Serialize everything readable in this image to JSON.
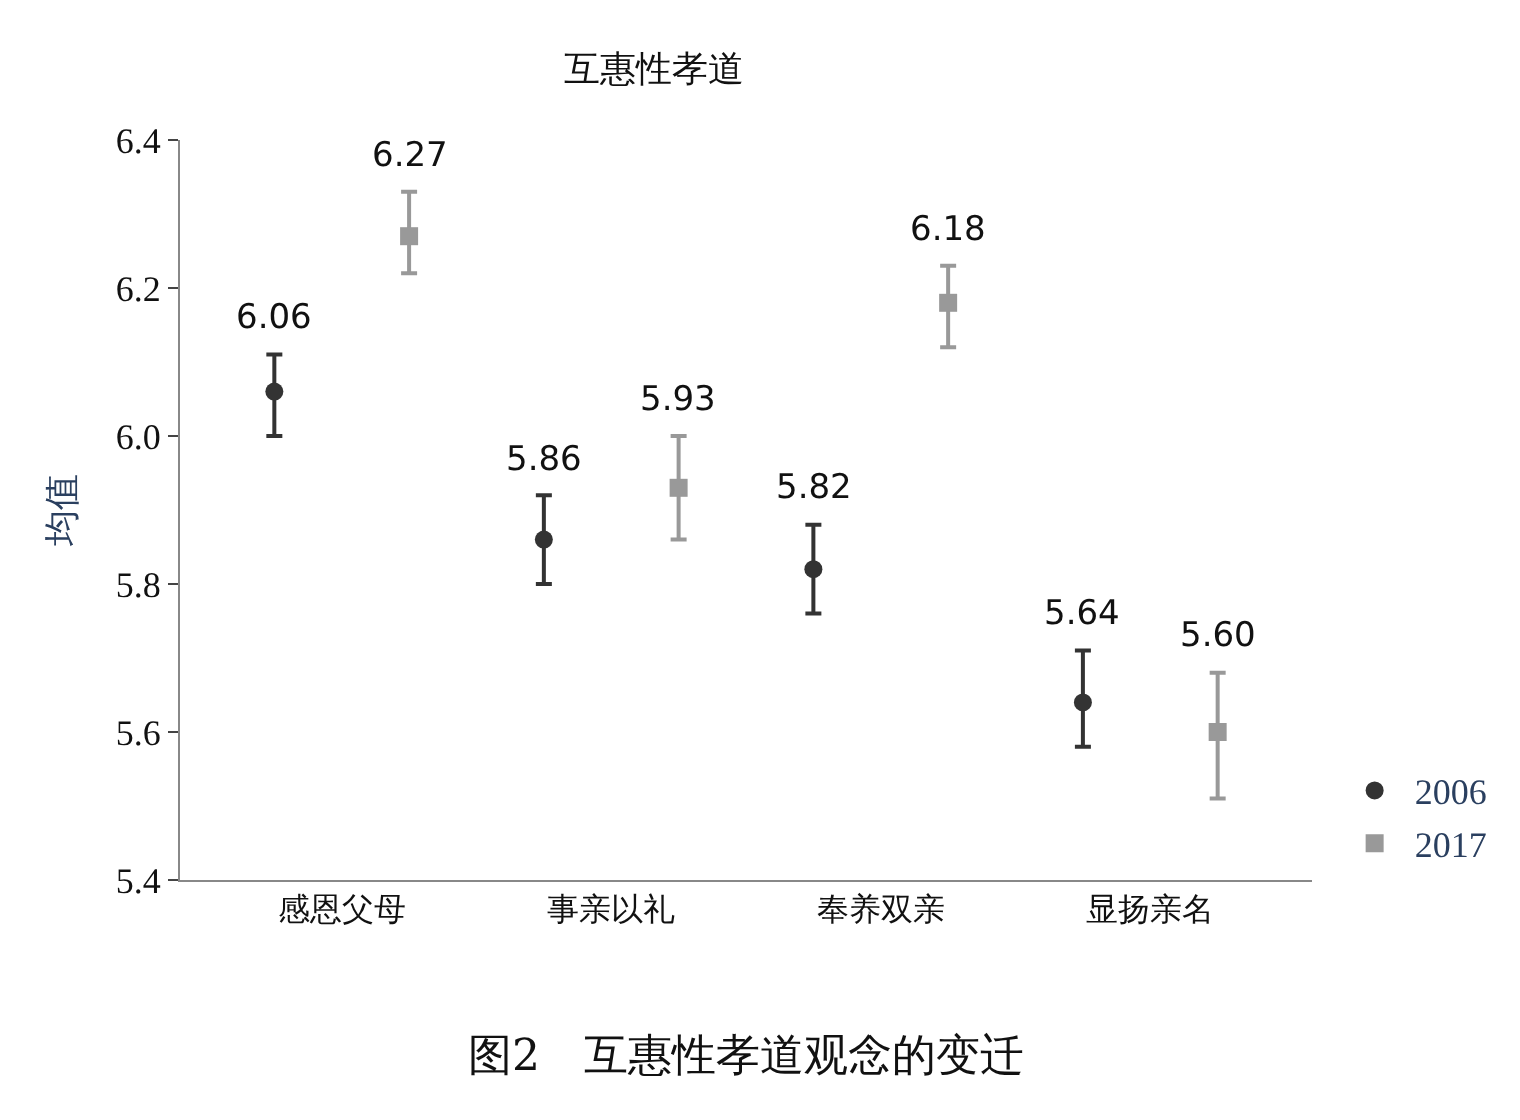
{
  "chart_data": {
    "type": "scatter",
    "title": "互惠性孝道",
    "ylabel": "均值",
    "categories": [
      "感恩父母",
      "事亲以礼",
      "奉养双亲",
      "显扬亲名"
    ],
    "series": [
      {
        "name": "2006",
        "color": "#333333",
        "marker": "circle",
        "values": [
          6.06,
          5.86,
          5.82,
          5.64
        ],
        "errors": [
          [
            6.0,
            6.11
          ],
          [
            5.8,
            5.92
          ],
          [
            5.76,
            5.88
          ],
          [
            5.58,
            5.71
          ]
        ],
        "value_labels": [
          "6.06",
          "5.86",
          "5.82",
          "5.64"
        ]
      },
      {
        "name": "2017",
        "color": "#999999",
        "marker": "square",
        "values": [
          6.27,
          5.93,
          6.18,
          5.6
        ],
        "errors": [
          [
            6.22,
            6.33
          ],
          [
            5.86,
            6.0
          ],
          [
            6.12,
            6.23
          ],
          [
            5.51,
            5.68
          ]
        ],
        "value_labels": [
          "6.27",
          "5.93",
          "6.18",
          "5.60"
        ]
      }
    ],
    "ylim": [
      5.4,
      6.4
    ],
    "yticks": [
      {
        "value": 5.4,
        "label": "5.4"
      },
      {
        "value": 5.6,
        "label": "5.6"
      },
      {
        "value": 5.8,
        "label": "5.8"
      },
      {
        "value": 6.0,
        "label": "6.0"
      },
      {
        "value": 6.2,
        "label": "6.2"
      },
      {
        "value": 6.4,
        "label": "6.4"
      }
    ],
    "legend": "bottom right",
    "annotations": [
      "图2　互惠性孝道观念的变迁"
    ]
  }
}
